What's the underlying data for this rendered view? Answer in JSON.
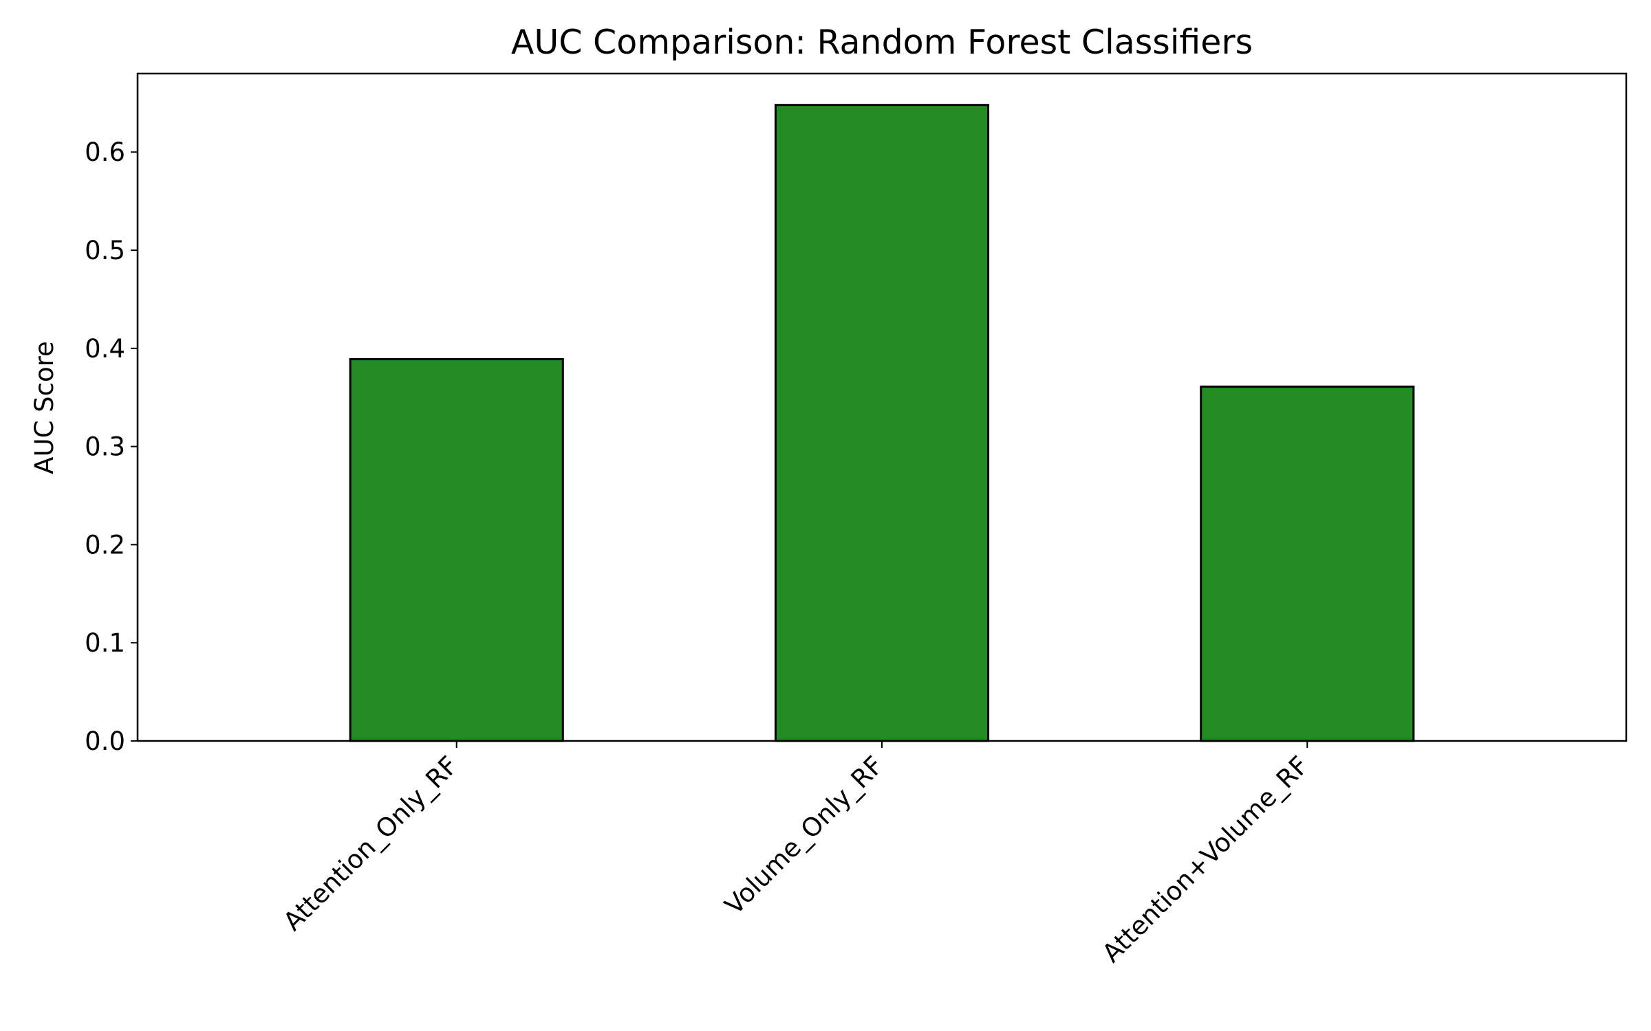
{
  "chart_data": {
    "type": "bar",
    "title": "AUC Comparison: Random Forest Classifiers",
    "xlabel": "",
    "ylabel": "AUC Score",
    "categories": [
      "Attention_Only_RF",
      "Volume_Only_RF",
      "Attention+Volume_RF"
    ],
    "values": [
      0.389,
      0.648,
      0.361
    ],
    "ylim": [
      0,
      0.68
    ],
    "yticks": [
      "0.0",
      "0.1",
      "0.2",
      "0.3",
      "0.4",
      "0.5",
      "0.6"
    ],
    "grid": false,
    "legend": "none",
    "bar_color": "#228B22",
    "edge_color": "#000000"
  }
}
